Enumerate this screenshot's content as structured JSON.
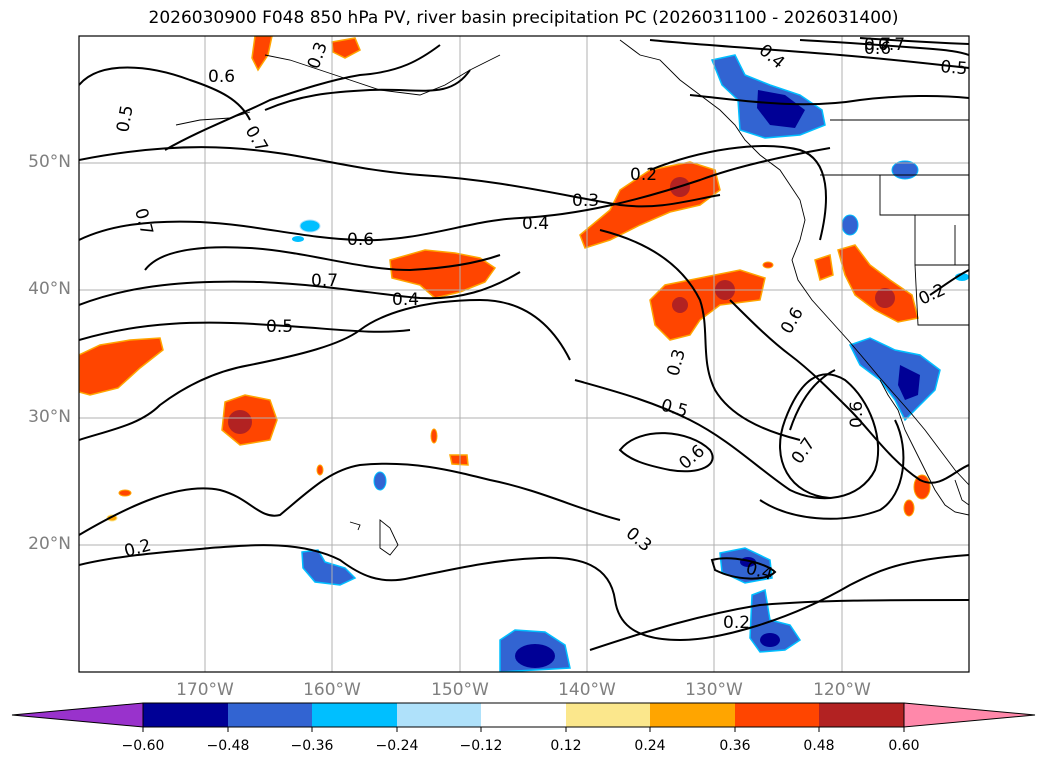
{
  "title": "2026030900 F048 850 hPa PV, river basin precipitation PC (2026031100 - 2026031400)",
  "lat_labels": [
    "50°N",
    "40°N",
    "30°N",
    "20°N"
  ],
  "lon_labels": [
    "170°W",
    "160°W",
    "150°W",
    "140°W",
    "130°W",
    "120°W"
  ],
  "colorbar": {
    "colors": [
      "#9932cc",
      "#000096",
      "#3264d2",
      "#00bfff",
      "#afe1fa",
      "#ffffff",
      "#fbe78c",
      "#ffa500",
      "#ff4500",
      "#b22222",
      "#ff88aa"
    ],
    "ticks": [
      "−0.60",
      "−0.48",
      "−0.36",
      "−0.24",
      "−0.12",
      "0.12",
      "0.24",
      "0.36",
      "0.48",
      "0.60"
    ]
  },
  "contour_labels": [
    "0.7",
    "0.6",
    "0.5",
    "0.3",
    "0.6",
    "0.5",
    "0.7",
    "0.7",
    "0.2",
    "0.3",
    "0.4",
    "0.6",
    "0.7",
    "0.4",
    "0.5",
    "0.3",
    "0.5",
    "0.6",
    "0.6",
    "0.7",
    "0.6",
    "0.2",
    "0.3",
    "0.4",
    "0.2",
    "0.2",
    "0.7",
    "0.4"
  ]
}
